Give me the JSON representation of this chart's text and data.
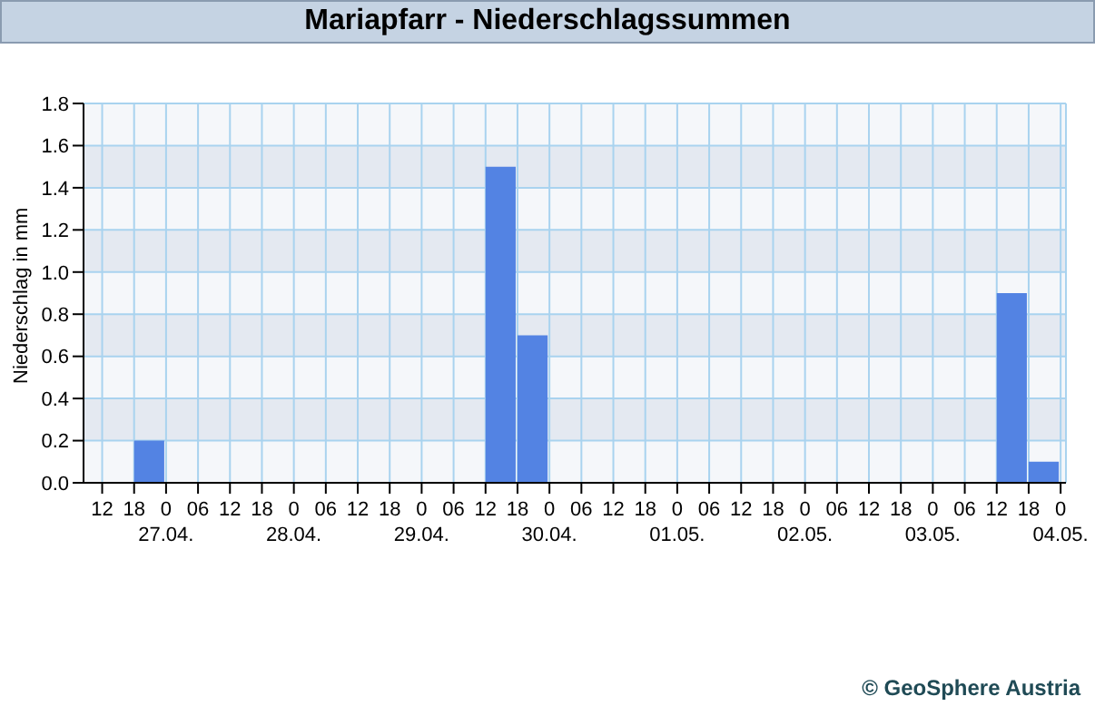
{
  "chart_data": {
    "type": "bar",
    "title": "Mariapfarr - Niederschlagssummen",
    "ylabel": "Niederschlag in mm",
    "x": [
      "--04-26T21:00",
      "--04-29T15:00",
      "--04-29T21:00",
      "--05-03T15:00",
      "--05-03T21:00"
    ],
    "values": [
      0.2,
      1.5,
      0.7,
      0.9,
      0.1
    ],
    "color": "#5383e3",
    "xlim": [
      "--04-26T08:30",
      "--05-04T01:00"
    ],
    "xticks": [
      {
        "value": "--04-26T12:00",
        "label": "12"
      },
      {
        "value": "--04-26T18:00",
        "label": "18"
      },
      {
        "value": "--04-27T00:00",
        "label": "0\n27.04."
      },
      {
        "value": "--04-27T06:00",
        "label": "06"
      },
      {
        "value": "--04-27T12:00",
        "label": "12"
      },
      {
        "value": "--04-27T18:00",
        "label": "18"
      },
      {
        "value": "--04-28T00:00",
        "label": "0\n28.04."
      },
      {
        "value": "--04-28T06:00",
        "label": "06"
      },
      {
        "value": "--04-28T12:00",
        "label": "12"
      },
      {
        "value": "--04-28T18:00",
        "label": "18"
      },
      {
        "value": "--04-29T00:00",
        "label": "0\n29.04."
      },
      {
        "value": "--04-29T06:00",
        "label": "06"
      },
      {
        "value": "--04-29T12:00",
        "label": "12"
      },
      {
        "value": "--04-29T18:00",
        "label": "18"
      },
      {
        "value": "--04-30T00:00",
        "label": "0\n30.04."
      },
      {
        "value": "--04-30T06:00",
        "label": "06"
      },
      {
        "value": "--04-30T12:00",
        "label": "12"
      },
      {
        "value": "--04-30T18:00",
        "label": "18"
      },
      {
        "value": "--05-01T00:00",
        "label": "0\n01.05."
      },
      {
        "value": "--05-01T06:00",
        "label": "06"
      },
      {
        "value": "--05-01T12:00",
        "label": "12"
      },
      {
        "value": "--05-01T18:00",
        "label": "18"
      },
      {
        "value": "--05-02T00:00",
        "label": "0\n02.05."
      },
      {
        "value": "--05-02T06:00",
        "label": "06"
      },
      {
        "value": "--05-02T12:00",
        "label": "12"
      },
      {
        "value": "--05-02T18:00",
        "label": "18"
      },
      {
        "value": "--05-03T00:00",
        "label": "0\n03.05."
      },
      {
        "value": "--05-03T06:00",
        "label": "06"
      },
      {
        "value": "--05-03T12:00",
        "label": "12"
      },
      {
        "value": "--05-03T18:00",
        "label": "18"
      },
      {
        "value": "--05-04T00:00",
        "label": "0\n04.05."
      }
    ],
    "ylim": [
      0,
      1.8
    ],
    "yticks": [
      {
        "value": 0,
        "label": "0.0"
      },
      {
        "value": 0.2,
        "label": "0.2"
      },
      {
        "value": 0.4,
        "label": "0.4"
      },
      {
        "value": 0.6,
        "label": "0.6"
      },
      {
        "value": 0.8,
        "label": "0.8"
      },
      {
        "value": 1.0,
        "label": "1.0"
      },
      {
        "value": 1.2,
        "label": "1.2"
      },
      {
        "value": 1.4,
        "label": "1.4"
      },
      {
        "value": 1.6,
        "label": "1.6"
      },
      {
        "value": 1.8,
        "label": "1.8"
      }
    ],
    "grid": true,
    "legend": false,
    "annotations": [
      "© GeoSphere Austria"
    ]
  }
}
